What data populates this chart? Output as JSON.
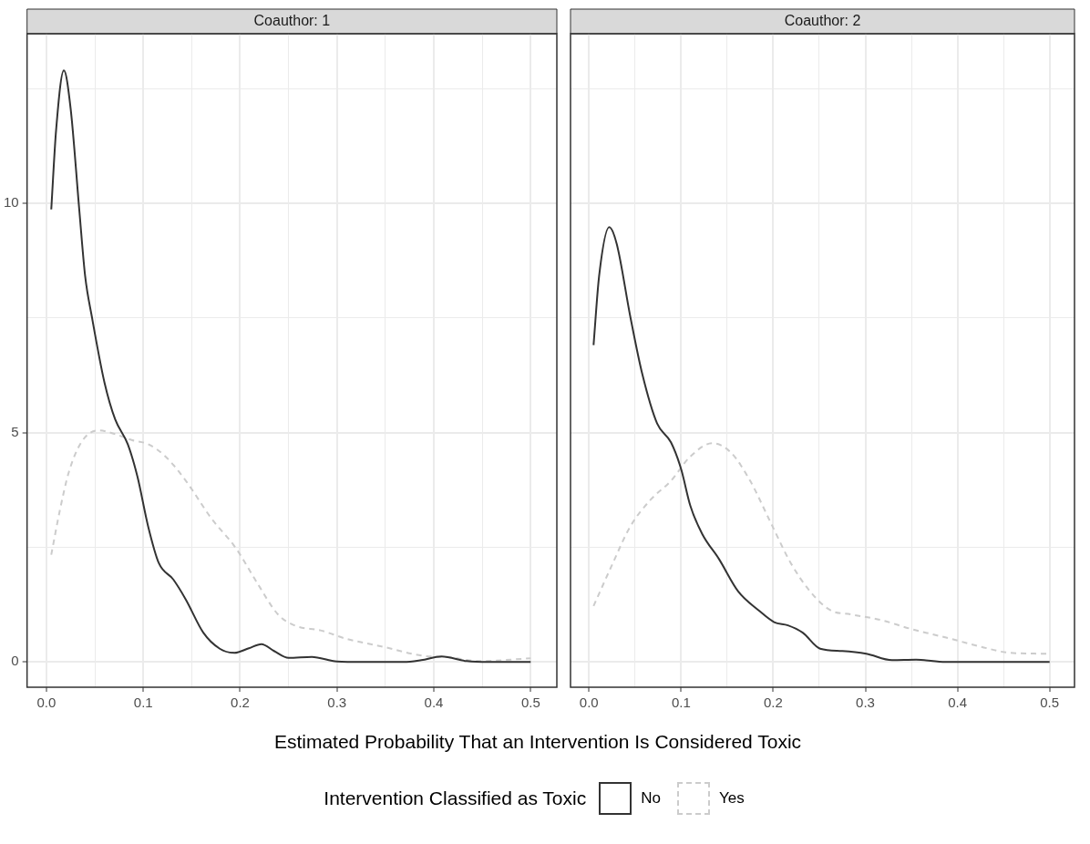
{
  "chart_data": [
    {
      "type": "line",
      "title": "Coauthor: 1",
      "xlabel": "Estimated Probability That an Intervention Is Considered Toxic",
      "legend_title": "Intervention Classified as Toxic",
      "legend": "bottom",
      "grid": true,
      "marker": "none",
      "xlim": [
        -0.02,
        0.527
      ],
      "ylim": [
        -0.55,
        13.7
      ],
      "xticks": [
        {
          "value": 0,
          "label": "0.0"
        },
        {
          "value": 0.05,
          "label": null
        },
        {
          "value": 0.1,
          "label": "0.1"
        },
        {
          "value": 0.15,
          "label": null
        },
        {
          "value": 0.2,
          "label": "0.2"
        },
        {
          "value": 0.25,
          "label": null
        },
        {
          "value": 0.3,
          "label": "0.3"
        },
        {
          "value": 0.35,
          "label": null
        },
        {
          "value": 0.4,
          "label": "0.4"
        },
        {
          "value": 0.45,
          "label": null
        },
        {
          "value": 0.5,
          "label": "0.5"
        }
      ],
      "yticks": [
        0,
        {
          "value": 2.5,
          "label": null
        },
        5,
        {
          "value": 7.5,
          "label": null
        },
        10,
        {
          "value": 12.5,
          "label": null
        }
      ],
      "series": [
        {
          "name": "No",
          "color": "#333333",
          "line_style": "solid",
          "x": [
            0.005,
            0.01,
            0.018,
            0.025,
            0.034,
            0.04,
            0.047,
            0.06,
            0.071,
            0.084,
            0.094,
            0.105,
            0.116,
            0.131,
            0.144,
            0.162,
            0.179,
            0.194,
            0.209,
            0.222,
            0.235,
            0.25,
            0.274,
            0.3,
            0.326,
            0.369,
            0.387,
            0.408,
            0.434,
            0.456,
            0.5
          ],
          "values": [
            9.87,
            11.6,
            12.9,
            12.07,
            9.84,
            8.41,
            7.52,
            6.09,
            5.29,
            4.75,
            4.04,
            2.96,
            2.16,
            1.8,
            1.36,
            0.64,
            0.29,
            0.2,
            0.3,
            0.39,
            0.24,
            0.09,
            0.11,
            0.01,
            0,
            0,
            0.04,
            0.12,
            0.02,
            0,
            0
          ]
        },
        {
          "name": "Yes",
          "color": "#cccccc",
          "line_style": "dashed",
          "x": [
            0.005,
            0.014,
            0.023,
            0.036,
            0.053,
            0.071,
            0.088,
            0.105,
            0.123,
            0.144,
            0.17,
            0.196,
            0.218,
            0.239,
            0.257,
            0.283,
            0.309,
            0.348,
            0.391,
            0.413,
            0.447,
            0.5
          ],
          "values": [
            2.34,
            3.32,
            4.13,
            4.79,
            5.05,
            4.97,
            4.84,
            4.75,
            4.48,
            3.95,
            3.14,
            2.47,
            1.71,
            1.04,
            0.79,
            0.69,
            0.51,
            0.33,
            0.13,
            0.11,
            0.02,
            0.08
          ]
        }
      ]
    },
    {
      "type": "line",
      "title": "Coauthor: 2",
      "grid": true,
      "marker": "none",
      "tick_labels": "x",
      "xlim": [
        -0.02,
        0.527
      ],
      "ylim": [
        -0.55,
        13.7
      ],
      "xticks": [
        {
          "value": 0,
          "label": "0.0"
        },
        {
          "value": 0.05,
          "label": null
        },
        {
          "value": 0.1,
          "label": "0.1"
        },
        {
          "value": 0.15,
          "label": null
        },
        {
          "value": 0.2,
          "label": "0.2"
        },
        {
          "value": 0.25,
          "label": null
        },
        {
          "value": 0.3,
          "label": "0.3"
        },
        {
          "value": 0.35,
          "label": null
        },
        {
          "value": 0.4,
          "label": "0.4"
        },
        {
          "value": 0.45,
          "label": null
        },
        {
          "value": 0.5,
          "label": "0.5"
        }
      ],
      "yticks": [
        0,
        {
          "value": 2.5,
          "label": null
        },
        5,
        {
          "value": 7.5,
          "label": null
        },
        10,
        {
          "value": 12.5,
          "label": null
        }
      ],
      "series": [
        {
          "color": "#333333",
          "line_style": "solid",
          "x": [
            0.005,
            0.011,
            0.022,
            0.03,
            0.045,
            0.058,
            0.074,
            0.089,
            0.1,
            0.11,
            0.123,
            0.141,
            0.162,
            0.184,
            0.201,
            0.216,
            0.232,
            0.251,
            0.275,
            0.301,
            0.329,
            0.355,
            0.387,
            0.5
          ],
          "values": [
            6.91,
            8.41,
            9.48,
            9.13,
            7.52,
            6.27,
            5.2,
            4.79,
            4.21,
            3.41,
            2.79,
            2.25,
            1.54,
            1.13,
            0.87,
            0.8,
            0.64,
            0.29,
            0.24,
            0.18,
            0.04,
            0.05,
            0,
            0
          ]
        },
        {
          "color": "#cccccc",
          "line_style": "dashed",
          "x": [
            0.005,
            0.024,
            0.045,
            0.067,
            0.089,
            0.11,
            0.134,
            0.154,
            0.175,
            0.197,
            0.219,
            0.24,
            0.262,
            0.284,
            0.318,
            0.348,
            0.392,
            0.426,
            0.457,
            0.5
          ],
          "values": [
            1.22,
            2.07,
            2.96,
            3.54,
            3.95,
            4.48,
            4.77,
            4.57,
            3.95,
            3.05,
            2.16,
            1.54,
            1.13,
            1.04,
            0.91,
            0.73,
            0.51,
            0.33,
            0.2,
            0.18
          ]
        }
      ]
    }
  ]
}
